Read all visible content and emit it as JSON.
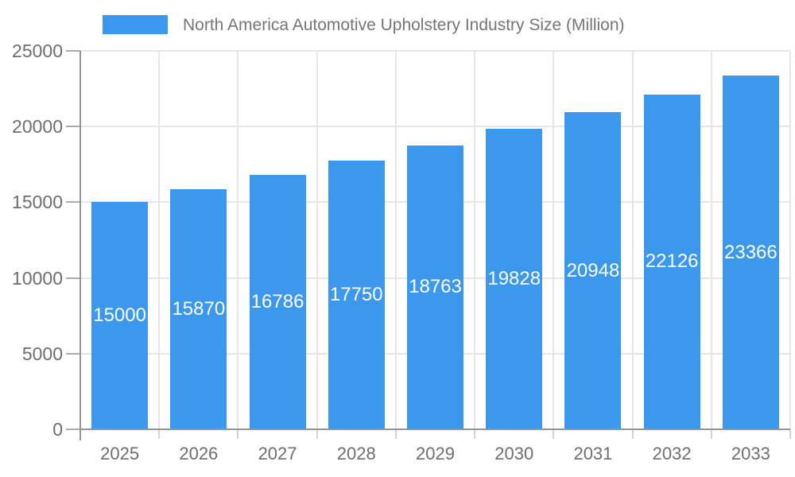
{
  "legend": {
    "series_label": "North America Automotive Upholstery Industry Size (Million)",
    "swatch_color": "#3B98EC"
  },
  "chart_data": {
    "type": "bar",
    "title": "North America Automotive Upholstery Industry Size (Million)",
    "categories": [
      "2025",
      "2026",
      "2027",
      "2028",
      "2029",
      "2030",
      "2031",
      "2032",
      "2033"
    ],
    "values": [
      15000,
      15870,
      16786,
      17750,
      18763,
      19828,
      20948,
      22126,
      23366
    ],
    "series": [
      {
        "name": "North America Automotive Upholstery Industry Size (Million)",
        "values": [
          15000,
          15870,
          16786,
          17750,
          18763,
          19828,
          20948,
          22126,
          23366
        ]
      }
    ],
    "xlabel": "",
    "ylabel": "",
    "ylim": [
      0,
      25000
    ],
    "yticks": [
      0,
      5000,
      10000,
      15000,
      20000,
      25000
    ],
    "grid": true,
    "legend_position": "top",
    "data_labels": "inside-center",
    "bar_color": "#3B98EC",
    "bar_label_color": "#FFFFFF"
  },
  "colors": {
    "background": "#FFFFFF",
    "bar": "#3B98EC",
    "grid_line": "#E6E6E6",
    "axis_line": "#949494",
    "y_tick": "#ABABAB",
    "category_tick": "#D4D4D4",
    "axis_label_text": "#6E6E6E",
    "legend_text": "#757575"
  }
}
